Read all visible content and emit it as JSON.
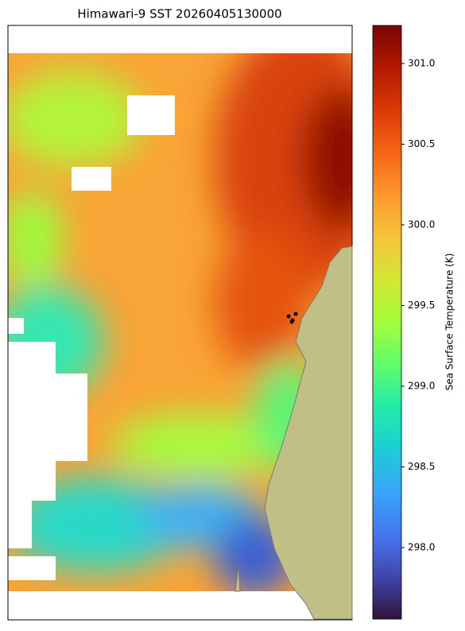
{
  "title": "Himawari-9 SST 20260405130000",
  "colorbar": {
    "label": "Sea Surface Temperature (K)",
    "lim": [
      297.557,
      301.236
    ],
    "ticks": [
      {
        "value": 298.0,
        "label": "298.0"
      },
      {
        "value": 298.5,
        "label": "298.5"
      },
      {
        "value": 299.0,
        "label": "299.0"
      },
      {
        "value": 299.5,
        "label": "299.5"
      },
      {
        "value": 300.0,
        "label": "300.0"
      },
      {
        "value": 300.5,
        "label": "300.5"
      },
      {
        "value": 301.0,
        "label": "301.0"
      }
    ]
  }
}
